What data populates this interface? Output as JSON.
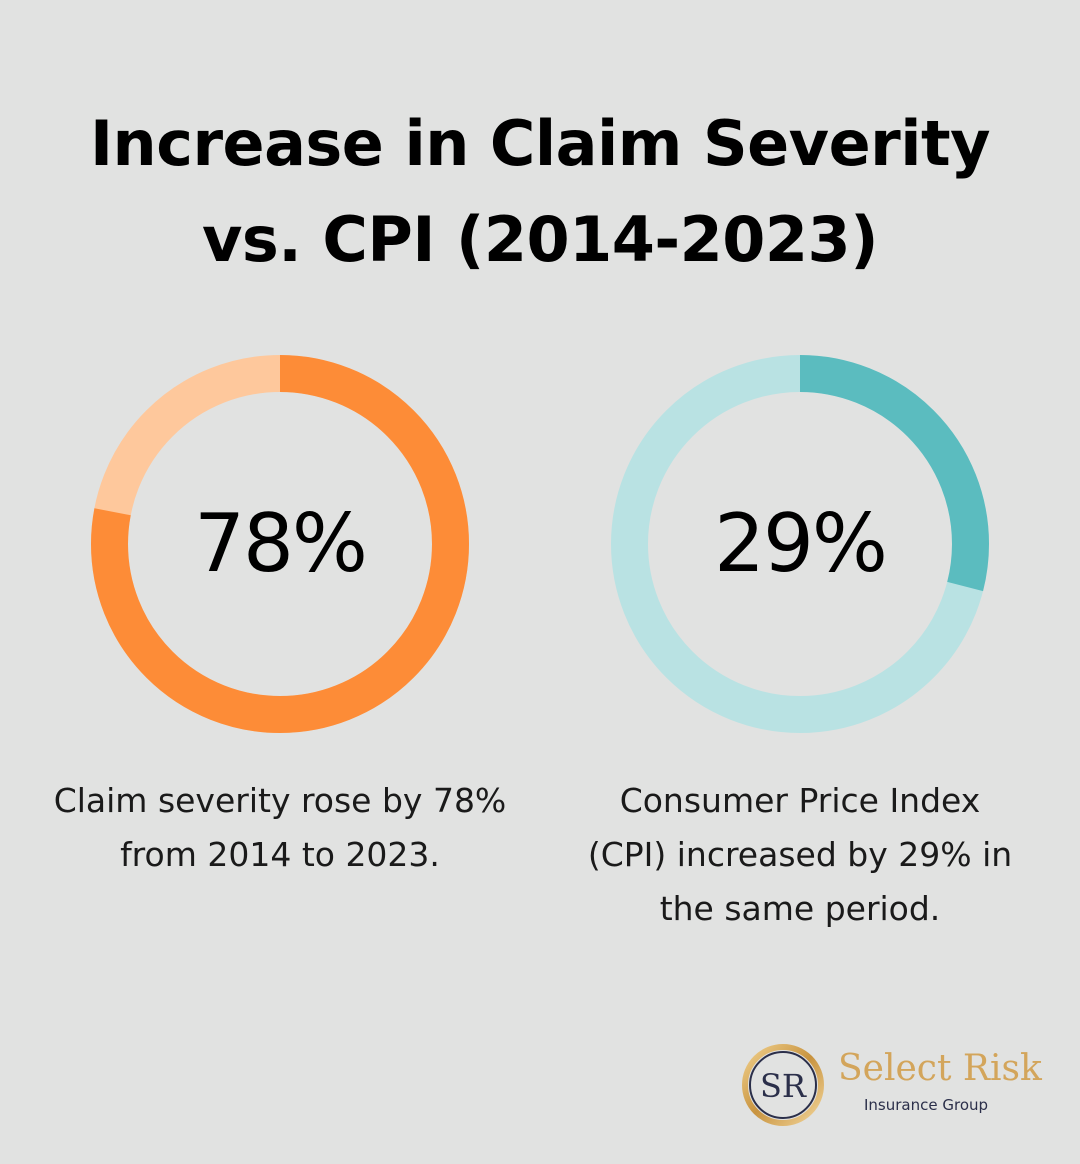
{
  "chart_data": [
    {
      "type": "pie",
      "value": 78,
      "label": "78%",
      "caption": [
        "Claim severity rose by 78%",
        "from 2014 to 2023."
      ],
      "colors": {
        "filled": "#fd8c37",
        "remainder": "#fec89c"
      }
    },
    {
      "type": "pie",
      "value": 29,
      "label": "29%",
      "caption": [
        "Consumer Price Index",
        "(CPI) increased by 29% in",
        "the same period."
      ],
      "colors": {
        "filled": "#5bbcbf",
        "remainder": "#b9e2e3"
      }
    }
  ],
  "header": {
    "title_line1": "Increase in Claim Severity",
    "title_line2": "vs. CPI (2014-2023)"
  },
  "logo": {
    "monogram": "SR",
    "name": "Select Risk",
    "subtitle": "Insurance Group",
    "colors": {
      "gold": "#d3a55b",
      "navy": "#2b2f4a"
    }
  }
}
